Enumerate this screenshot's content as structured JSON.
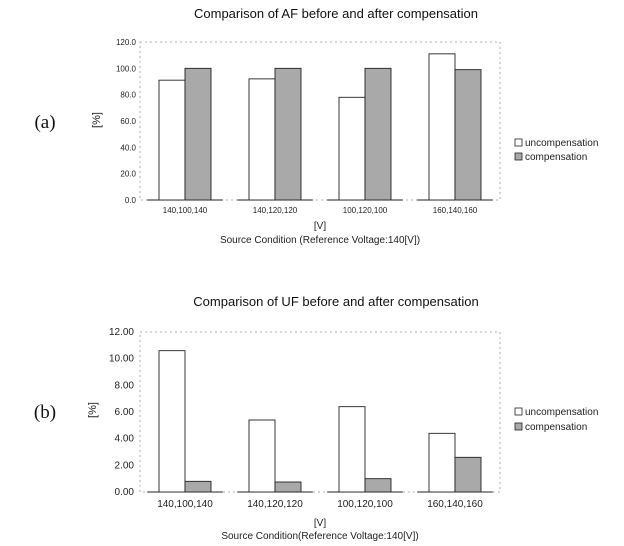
{
  "colors": {
    "uncompensation": "#ffffff",
    "compensation": "#a9a9a9",
    "stroke": "#222222"
  },
  "chart_data": [
    {
      "panel": "(a)",
      "type": "bar",
      "title": "Comparison of AF before and after compensation",
      "ylabel": "[%]",
      "xunit": "[V]",
      "xlabel": "Source Condition (Reference Voltage:140[V])",
      "categories": [
        "140,100,140",
        "140,120,120",
        "100,120,100",
        "160,140,160"
      ],
      "ylim": [
        0,
        120
      ],
      "yticks": [
        "0.0",
        "20.0",
        "40.0",
        "60.0",
        "80.0",
        "100.0",
        "120.0"
      ],
      "legend_position": "right",
      "series": [
        {
          "name": "uncompensation",
          "values": [
            91,
            92,
            78,
            111
          ]
        },
        {
          "name": "compensation",
          "values": [
            100,
            100,
            100,
            99
          ]
        }
      ]
    },
    {
      "panel": "(b)",
      "type": "bar",
      "title": "Comparison of UF before and after compensation",
      "ylabel": "[%]",
      "xunit": "[V]",
      "xlabel": "Source Condition(Reference Voltage:140[V])",
      "categories": [
        "140,100,140",
        "140,120,120",
        "100,120,100",
        "160,140,160"
      ],
      "ylim": [
        0,
        12
      ],
      "yticks": [
        "0.00",
        "2.00",
        "4.00",
        "6.00",
        "8.00",
        "10.00",
        "12.00"
      ],
      "legend_position": "right",
      "series": [
        {
          "name": "uncompensation",
          "values": [
            10.6,
            5.4,
            6.4,
            4.4
          ]
        },
        {
          "name": "compensation",
          "values": [
            0.8,
            0.75,
            1.0,
            2.6
          ]
        }
      ]
    }
  ]
}
